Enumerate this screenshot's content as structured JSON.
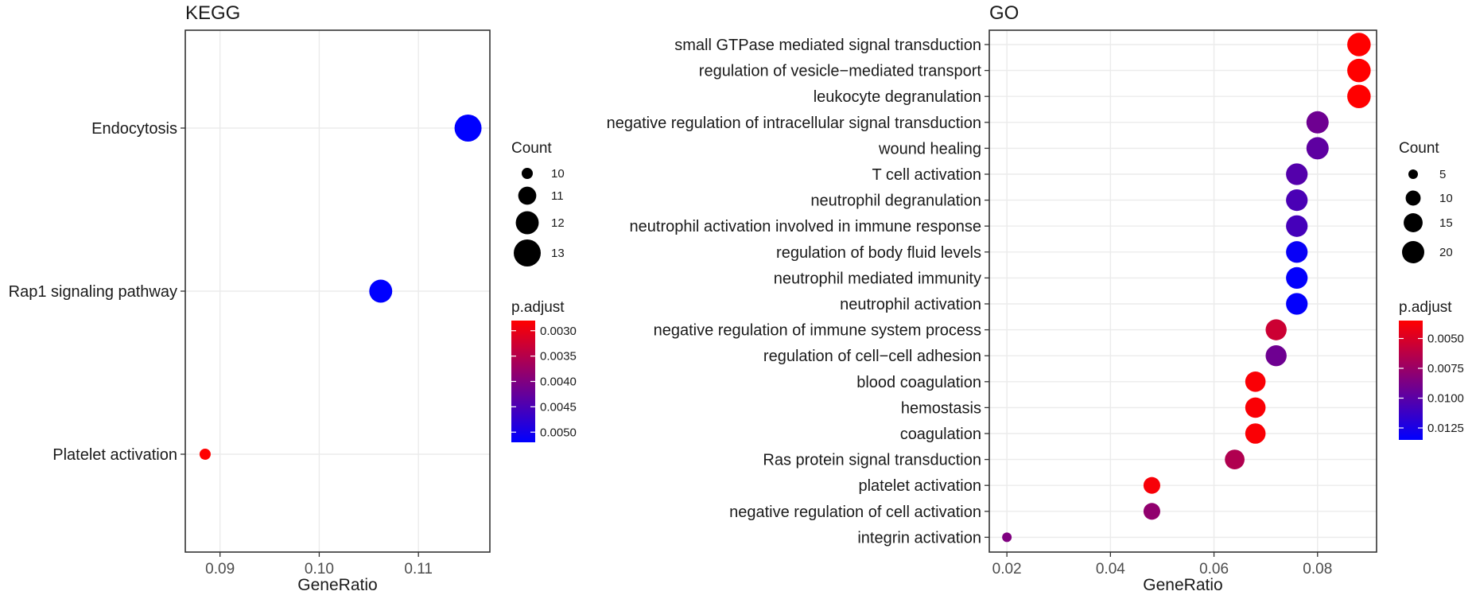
{
  "chart_data": [
    {
      "type": "scatter",
      "panel": "KEGG",
      "title": "KEGG",
      "xlabel": "GeneRatio",
      "ylabel": "",
      "xlim": [
        0.0865,
        0.1172
      ],
      "xticks": [
        0.09,
        0.1,
        0.11
      ],
      "xtick_labels": [
        "0.09",
        "0.10",
        "0.11"
      ],
      "grid": true,
      "legend_position": "right",
      "categories": [
        "Endocytosis",
        "Rap1 signaling pathway",
        "Platelet activation"
      ],
      "points": [
        {
          "term": "Endocytosis",
          "gene_ratio": 0.115,
          "count": 13,
          "p_adjust": 0.0052
        },
        {
          "term": "Rap1 signaling pathway",
          "gene_ratio": 0.1062,
          "count": 12,
          "p_adjust": 0.0052
        },
        {
          "term": "Platelet activation",
          "gene_ratio": 0.0885,
          "count": 10,
          "p_adjust": 0.0028
        }
      ],
      "size_legend": {
        "title": "Count",
        "values": [
          10,
          11,
          12,
          13
        ],
        "labels": [
          "10",
          "11",
          "12",
          "13"
        ]
      },
      "color_legend": {
        "title": "p.adjust",
        "domain": [
          0.0028,
          0.0052
        ],
        "ticks": [
          0.003,
          0.0035,
          0.004,
          0.0045,
          0.005
        ],
        "tick_labels": [
          "0.0030",
          "0.0035",
          "0.0040",
          "0.0045",
          "0.0050"
        ],
        "low_color": "#ff0000",
        "high_color": "#0000ff"
      }
    },
    {
      "type": "scatter",
      "panel": "GO",
      "title": "GO",
      "xlabel": "GeneRatio",
      "ylabel": "",
      "xlim": [
        0.0166,
        0.0914
      ],
      "xticks": [
        0.02,
        0.04,
        0.06,
        0.08
      ],
      "xtick_labels": [
        "0.02",
        "0.04",
        "0.06",
        "0.08"
      ],
      "grid": true,
      "legend_position": "right",
      "categories": [
        "small GTPase mediated signal transduction",
        "regulation of vesicle−mediated transport",
        "leukocyte degranulation",
        "negative regulation of intracellular signal transduction",
        "wound healing",
        "T cell activation",
        "neutrophil degranulation",
        "neutrophil activation involved in immune response",
        "regulation of body fluid levels",
        "neutrophil mediated immunity",
        "neutrophil activation",
        "negative regulation of immune system process",
        "regulation of cell−cell adhesion",
        "blood coagulation",
        "hemostasis",
        "coagulation",
        "Ras protein signal transduction",
        "platelet activation",
        "negative regulation of cell activation",
        "integrin activation"
      ],
      "points": [
        {
          "term": "small GTPase mediated signal transduction",
          "gene_ratio": 0.088,
          "count": 22,
          "p_adjust": 0.0035
        },
        {
          "term": "regulation of vesicle−mediated transport",
          "gene_ratio": 0.088,
          "count": 22,
          "p_adjust": 0.0035
        },
        {
          "term": "leukocyte degranulation",
          "gene_ratio": 0.088,
          "count": 22,
          "p_adjust": 0.0035
        },
        {
          "term": "negative regulation of intracellular signal transduction",
          "gene_ratio": 0.08,
          "count": 20,
          "p_adjust": 0.0092
        },
        {
          "term": "wound healing",
          "gene_ratio": 0.08,
          "count": 20,
          "p_adjust": 0.0098
        },
        {
          "term": "T cell activation",
          "gene_ratio": 0.076,
          "count": 19,
          "p_adjust": 0.0102
        },
        {
          "term": "neutrophil degranulation",
          "gene_ratio": 0.076,
          "count": 19,
          "p_adjust": 0.0106
        },
        {
          "term": "neutrophil activation involved in immune response",
          "gene_ratio": 0.076,
          "count": 19,
          "p_adjust": 0.0108
        },
        {
          "term": "regulation of body fluid levels",
          "gene_ratio": 0.076,
          "count": 19,
          "p_adjust": 0.0132
        },
        {
          "term": "neutrophil mediated immunity",
          "gene_ratio": 0.076,
          "count": 19,
          "p_adjust": 0.0134
        },
        {
          "term": "neutrophil activation",
          "gene_ratio": 0.076,
          "count": 19,
          "p_adjust": 0.0134
        },
        {
          "term": "negative regulation of immune system process",
          "gene_ratio": 0.072,
          "count": 18,
          "p_adjust": 0.0055
        },
        {
          "term": "regulation of cell−cell adhesion",
          "gene_ratio": 0.072,
          "count": 18,
          "p_adjust": 0.0092
        },
        {
          "term": "blood coagulation",
          "gene_ratio": 0.068,
          "count": 17,
          "p_adjust": 0.0037
        },
        {
          "term": "hemostasis",
          "gene_ratio": 0.068,
          "count": 17,
          "p_adjust": 0.0037
        },
        {
          "term": "coagulation",
          "gene_ratio": 0.068,
          "count": 17,
          "p_adjust": 0.0037
        },
        {
          "term": "Ras protein signal transduction",
          "gene_ratio": 0.064,
          "count": 16,
          "p_adjust": 0.0066
        },
        {
          "term": "platelet activation",
          "gene_ratio": 0.048,
          "count": 12,
          "p_adjust": 0.0038
        },
        {
          "term": "negative regulation of cell activation",
          "gene_ratio": 0.048,
          "count": 12,
          "p_adjust": 0.0078
        },
        {
          "term": "integrin activation",
          "gene_ratio": 0.02,
          "count": 5,
          "p_adjust": 0.0085
        }
      ],
      "size_legend": {
        "title": "Count",
        "values": [
          5,
          10,
          15,
          20
        ],
        "labels": [
          "5",
          "10",
          "15",
          "20"
        ]
      },
      "color_legend": {
        "title": "p.adjust",
        "domain": [
          0.0035,
          0.0135
        ],
        "ticks": [
          0.005,
          0.0075,
          0.01,
          0.0125
        ],
        "tick_labels": [
          "0.0050",
          "0.0075",
          "0.0100",
          "0.0125"
        ],
        "low_color": "#ff0000",
        "high_color": "#0000ff"
      }
    }
  ]
}
